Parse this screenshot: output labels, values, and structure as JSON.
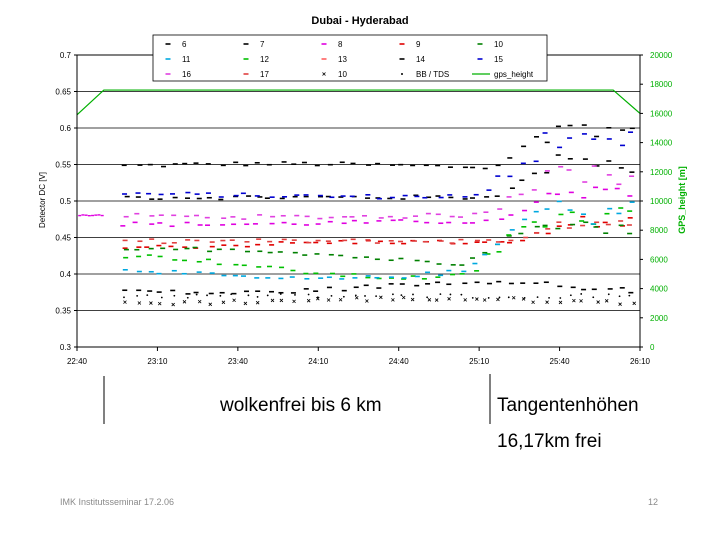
{
  "chart_data": {
    "type": "scatter",
    "title": "Dubai - Hyderabad",
    "ylabel": "Detector DC [V]",
    "y2label": "GPS_height [m]",
    "xlabel": "",
    "x_ticks": [
      "22:40",
      "23:10",
      "23:40",
      "24:10",
      "24:40",
      "25:10",
      "25:40",
      "26:10"
    ],
    "y_ticks": [
      "0.3",
      "0.35",
      "0.4",
      "0.45",
      "0.5",
      "0.55",
      "0.6",
      "0.65",
      "0.7"
    ],
    "y2_ticks": [
      "0",
      "2000",
      "4000",
      "6000",
      "8000",
      "10000",
      "12000",
      "14000",
      "16000",
      "18000",
      "20000"
    ],
    "xlim": [
      "22:40",
      "26:10"
    ],
    "ylim": [
      0.3,
      0.7
    ],
    "y2lim": [
      0,
      20000
    ],
    "grid": "horizontal",
    "legend_position": "top",
    "legend": [
      {
        "label": "6",
        "color": "#000000",
        "marker": "dash"
      },
      {
        "label": "7",
        "color": "#000000",
        "marker": "dash"
      },
      {
        "label": "8",
        "color": "#e000e0",
        "marker": "dash"
      },
      {
        "label": "9",
        "color": "#e00000",
        "marker": "dash"
      },
      {
        "label": "10",
        "color": "#008000",
        "marker": "dash"
      },
      {
        "label": "11",
        "color": "#00a8e0",
        "marker": "dash"
      },
      {
        "label": "12",
        "color": "#00c000",
        "marker": "dash"
      },
      {
        "label": "13",
        "color": "#ff6060",
        "marker": "dash"
      },
      {
        "label": "14",
        "color": "#000000",
        "marker": "dash"
      },
      {
        "label": "15",
        "color": "#0000d0",
        "marker": "dash"
      },
      {
        "label": "16",
        "color": "#e040e0",
        "marker": "dash"
      },
      {
        "label": "17",
        "color": "#e04040",
        "marker": "dash"
      },
      {
        "label": "10",
        "color": "#000000",
        "marker": "x"
      },
      {
        "label": "BB / TDS",
        "color": "#000000",
        "marker": "dot"
      },
      {
        "label": "gps_height",
        "color": "#00b000",
        "marker": "line"
      }
    ],
    "series": [
      {
        "legend_index": 0,
        "color": "#000000",
        "base": 0.548,
        "drift": 0.003,
        "rise": 0.07,
        "riseStart": "25:15"
      },
      {
        "legend_index": 8,
        "color": "#000000",
        "base": 0.505,
        "drift": 0.0,
        "rise": 0.06,
        "riseStart": "25:15"
      },
      {
        "legend_index": 14,
        "color": "#0000d0",
        "base": 0.508,
        "drift": 0.002,
        "rise": 0.09,
        "riseStart": "25:10"
      },
      {
        "legend_index": 10,
        "color": "#e040e0",
        "base": 0.48,
        "drift": 0.002,
        "rise": 0.07,
        "riseStart": "25:12"
      },
      {
        "legend_index": 2,
        "color": "#e000e0",
        "base": 0.47,
        "drift": 0.002,
        "rise": 0.05,
        "riseStart": "25:15"
      },
      {
        "legend_index": 3,
        "color": "#e00000",
        "base": 0.44,
        "drift": 0.004,
        "rise": 0.04,
        "riseStart": "25:20"
      },
      {
        "legend_index": 11,
        "color": "#e04040",
        "base": 0.445,
        "drift": 0.0,
        "rise": 0.03,
        "riseStart": "25:20"
      },
      {
        "legend_index": 4,
        "color": "#008000",
        "base": 0.424,
        "drift": 0.01,
        "rise": 0.06,
        "riseStart": "25:05"
      },
      {
        "legend_index": 6,
        "color": "#00c000",
        "base": 0.41,
        "drift": 0.015,
        "rise": 0.08,
        "riseStart": "25:05"
      },
      {
        "legend_index": 5,
        "color": "#00a8e0",
        "base": 0.403,
        "drift": 0.01,
        "rise": 0.09,
        "riseStart": "25:05"
      },
      {
        "legend_index": 1,
        "color": "#000000",
        "base": 0.382,
        "drift": 0.008,
        "rise": -0.01,
        "riseStart": "25:30"
      },
      {
        "legend_index": 12,
        "color": "#000000",
        "base": 0.363,
        "drift": 0.003,
        "rise": 0.0,
        "riseStart": "25:30"
      },
      {
        "legend_index": 13,
        "color": "#000000",
        "base": 0.37,
        "drift": 0.0,
        "rise": 0.0,
        "riseStart": "25:30"
      }
    ],
    "gps_height": {
      "color": "#00b000",
      "points": [
        {
          "x": "22:40",
          "y": 15900
        },
        {
          "x": "22:50",
          "y": 17600
        },
        {
          "x": "26:00",
          "y": 17600
        },
        {
          "x": "26:10",
          "y": 16000
        }
      ]
    }
  },
  "annotations": {
    "left_text": "wolkenfrei bis 6 km",
    "right_text": "Tangentenhöhen",
    "right_text2": "16,17km frei"
  },
  "footer": {
    "left": "IMK Institutsseminar  17.2.06",
    "page": "12"
  }
}
